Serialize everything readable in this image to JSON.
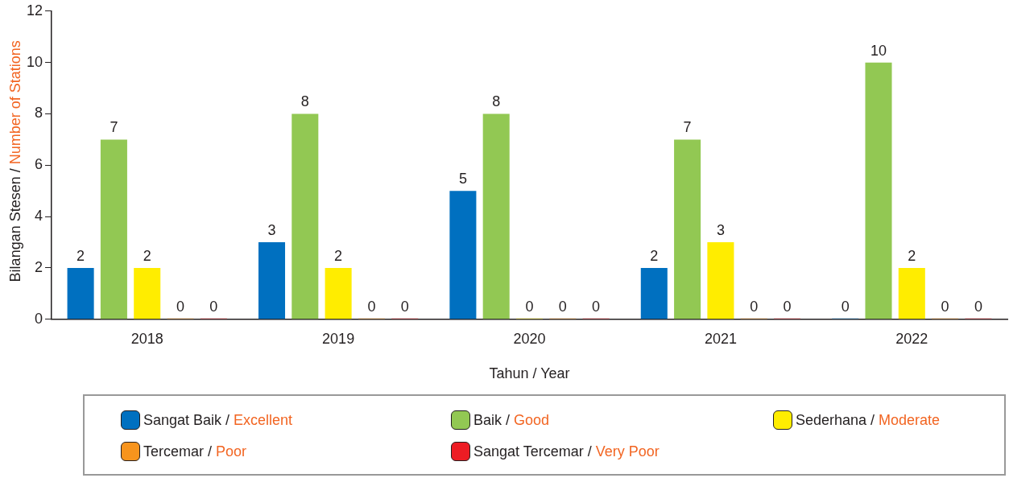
{
  "chart_data": {
    "type": "bar",
    "xlabel": "Tahun / Year",
    "ylabel": "Bilangan Stesen / Number of Stations",
    "categories": [
      "2018",
      "2019",
      "2020",
      "2021",
      "2022"
    ],
    "series": [
      {
        "name": "Sangat Baik / Excellent",
        "color": "#0070c0",
        "values": [
          2,
          3,
          5,
          2,
          0
        ]
      },
      {
        "name": "Baik / Good",
        "color": "#92c853",
        "values": [
          7,
          8,
          8,
          7,
          10
        ]
      },
      {
        "name": "Sederhana / Moderate",
        "color": "#ffed00",
        "values": [
          2,
          2,
          0,
          3,
          2
        ]
      },
      {
        "name": "Tercemar / Poor",
        "color": "#f7941d",
        "values": [
          0,
          0,
          0,
          0,
          0
        ]
      },
      {
        "name": "Sangat Tercemar / Very Poor",
        "color": "#ed1c24",
        "values": [
          0,
          0,
          0,
          0,
          0
        ]
      }
    ],
    "ylim": [
      0,
      12
    ],
    "yticks": [
      0,
      2,
      4,
      6,
      8,
      10,
      12
    ],
    "grid": false,
    "legend": "bottom",
    "data_labels": true
  }
}
